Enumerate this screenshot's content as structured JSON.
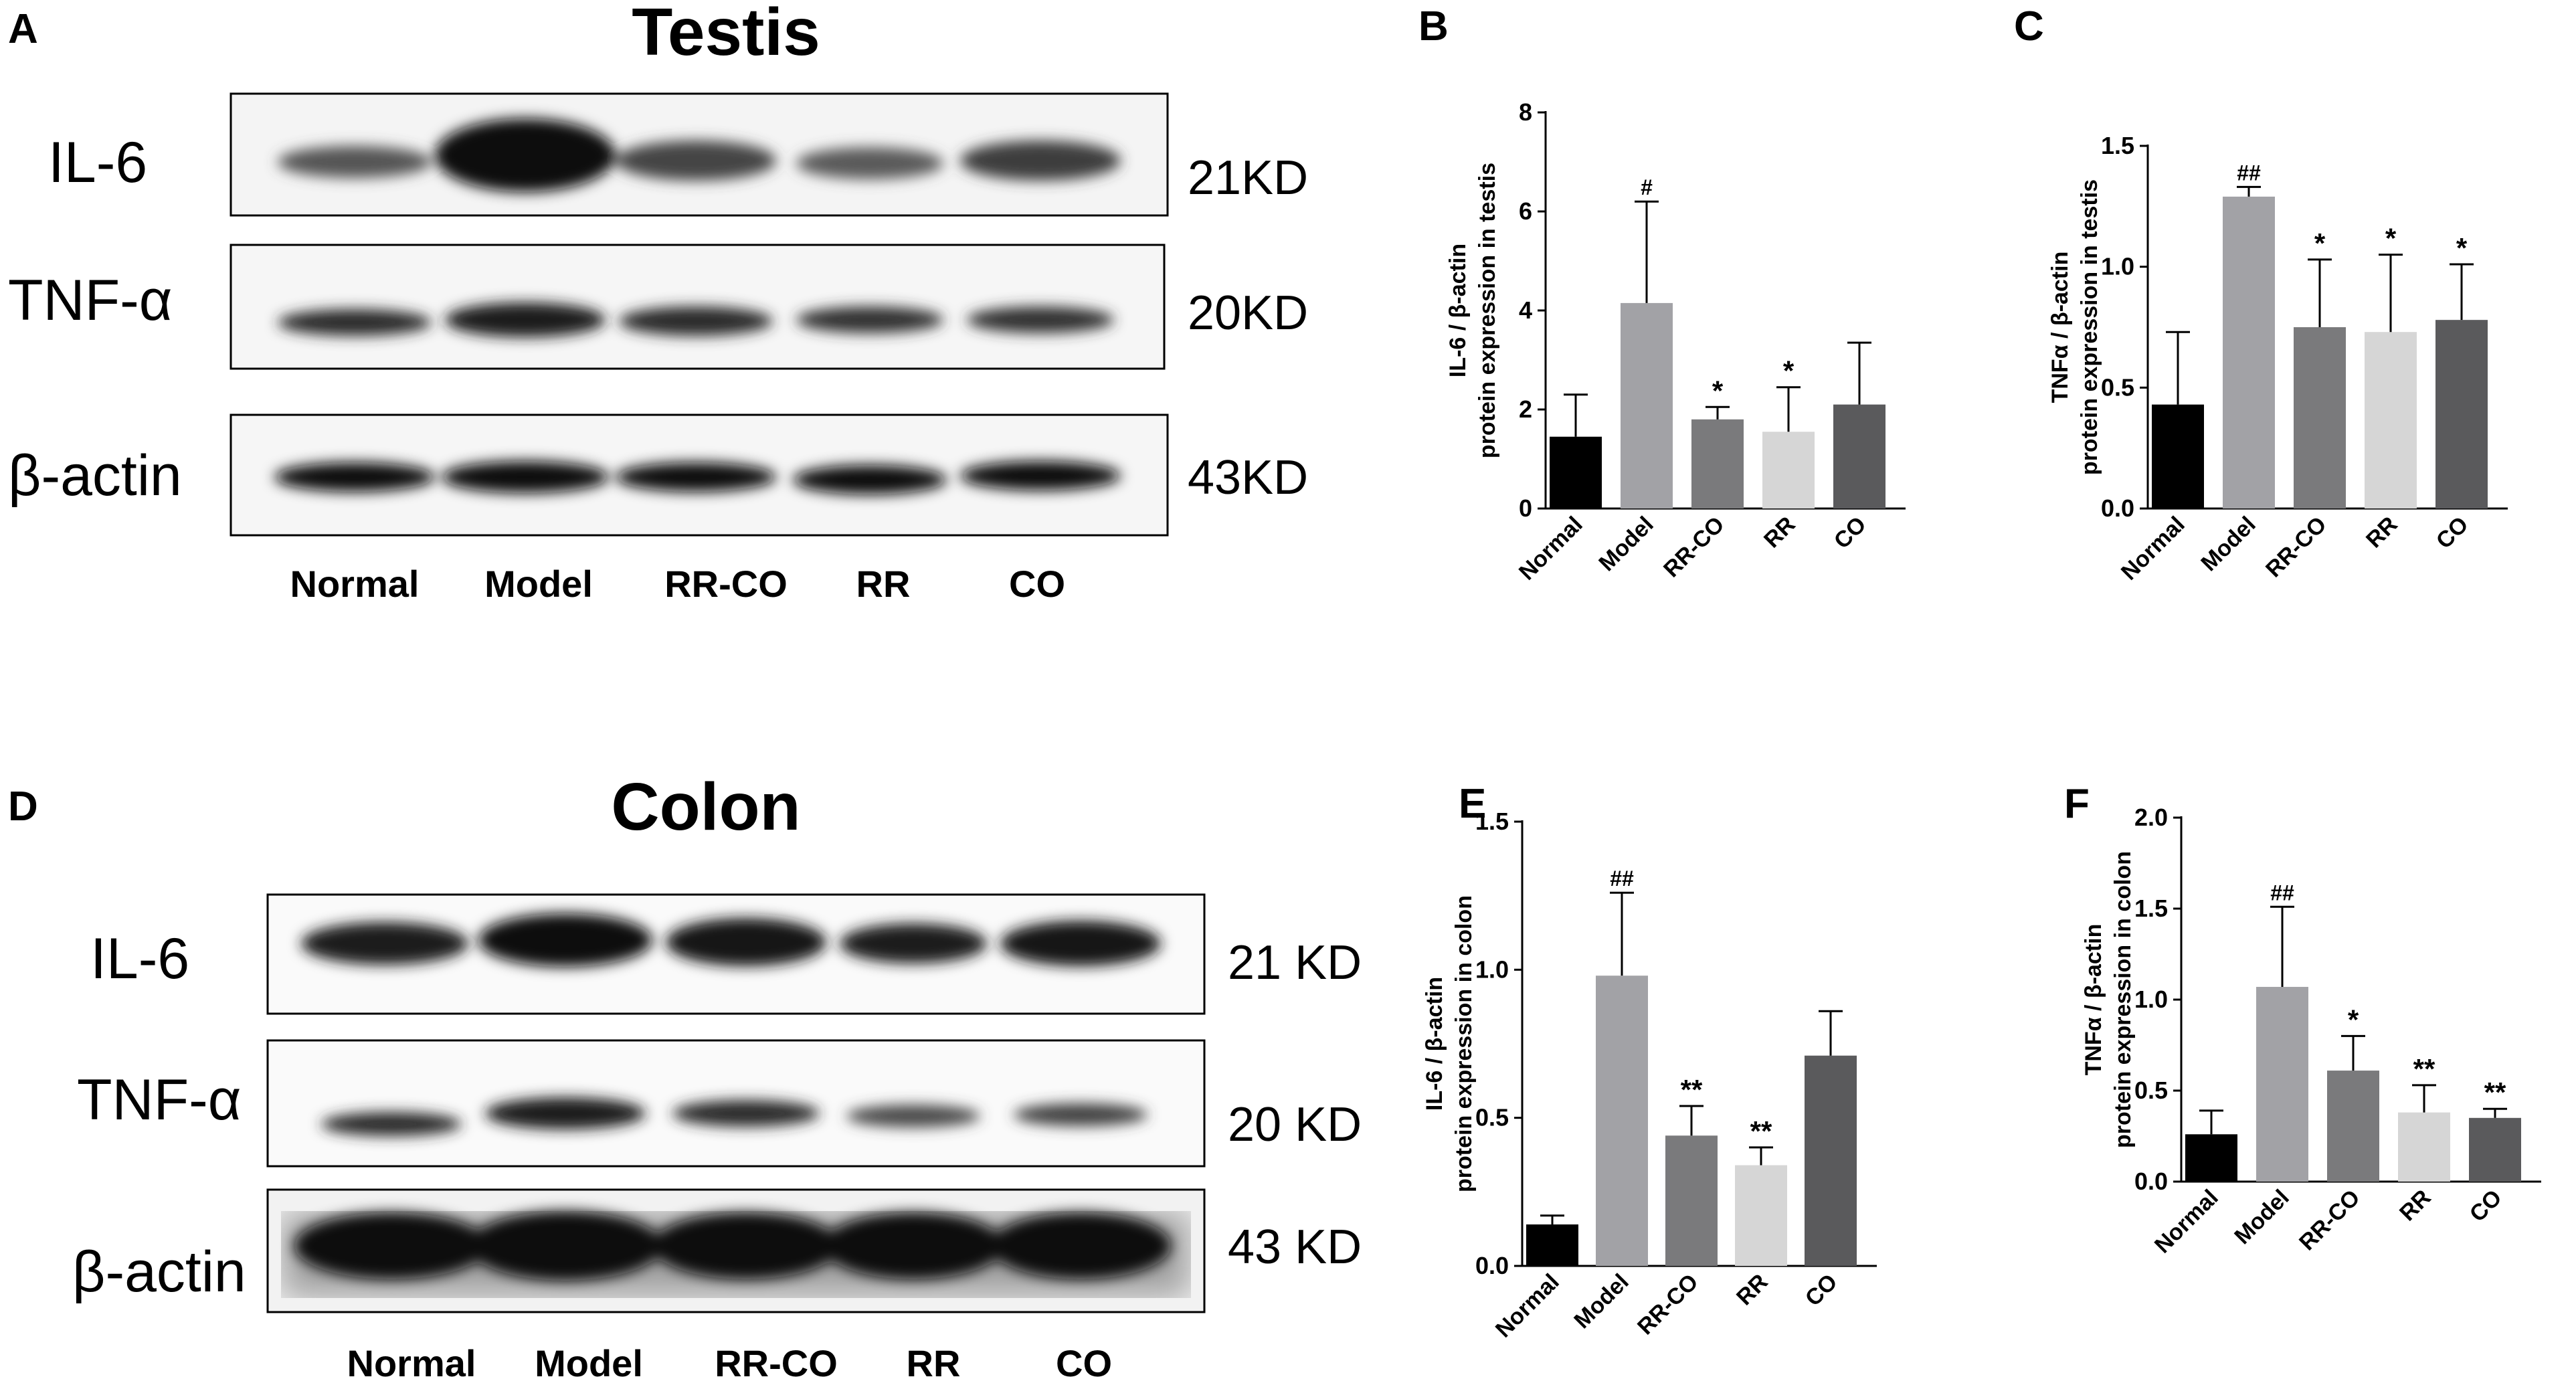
{
  "panel_letters": [
    "A",
    "B",
    "C",
    "D",
    "E",
    "F"
  ],
  "blots": [
    {
      "title": "Testis",
      "rows": [
        {
          "label": "IL-6",
          "size": "21KD"
        },
        {
          "label": "TNF-α",
          "size": "20KD"
        },
        {
          "label": "β-actin",
          "size": "43KD"
        }
      ],
      "lanes": [
        "Normal",
        "Model",
        "RR-CO",
        "RR",
        "CO"
      ]
    },
    {
      "title": "Colon",
      "rows": [
        {
          "label": "IL-6",
          "size": "21 KD"
        },
        {
          "label": "TNF-α",
          "size": "20 KD"
        },
        {
          "label": "β-actin",
          "size": "43 KD"
        }
      ],
      "lanes": [
        "Normal",
        "Model",
        "RR-CO",
        "RR",
        "CO"
      ]
    }
  ],
  "bar_colors": [
    "#000000",
    "#a2a2a6",
    "#7a7a7c",
    "#d6d6d6",
    "#5a5a5c"
  ],
  "chart_data": [
    {
      "panel": "B",
      "type": "bar",
      "ylabel": [
        "IL-6 / β-actin",
        "protein expression in testis"
      ],
      "categories": [
        "Normal",
        "Model",
        "RR-CO",
        "RR",
        "CO"
      ],
      "values": [
        1.45,
        4.15,
        1.8,
        1.55,
        2.1
      ],
      "errors": [
        0.85,
        2.05,
        0.25,
        0.9,
        1.25
      ],
      "annotations": [
        "",
        "#",
        "*",
        "*",
        ""
      ],
      "ylim": [
        0,
        8
      ],
      "yticks": [
        "0",
        "2",
        "4",
        "6",
        "8"
      ]
    },
    {
      "panel": "C",
      "type": "bar",
      "ylabel": [
        "TNFα / β-actin",
        "protein expression in testis"
      ],
      "categories": [
        "Normal",
        "Model",
        "RR-CO",
        "RR",
        "CO"
      ],
      "values": [
        0.43,
        1.29,
        0.75,
        0.73,
        0.78
      ],
      "errors": [
        0.3,
        0.04,
        0.28,
        0.32,
        0.23
      ],
      "annotations": [
        "",
        "##",
        "*",
        "*",
        "*"
      ],
      "ylim": [
        0,
        1.5
      ],
      "yticks": [
        "0.0",
        "0.5",
        "1.0",
        "1.5"
      ]
    },
    {
      "panel": "E",
      "type": "bar",
      "ylabel": [
        "IL-6 / β-actin",
        "protein expression in colon"
      ],
      "categories": [
        "Normal",
        "Model",
        "RR-CO",
        "RR",
        "CO"
      ],
      "values": [
        0.14,
        0.98,
        0.44,
        0.34,
        0.71
      ],
      "errors": [
        0.03,
        0.28,
        0.1,
        0.06,
        0.15
      ],
      "annotations": [
        "",
        "##",
        "**",
        "**",
        ""
      ],
      "ylim": [
        0,
        1.5
      ],
      "yticks": [
        "0.0",
        "0.5",
        "1.0",
        "1.5"
      ]
    },
    {
      "panel": "F",
      "type": "bar",
      "ylabel": [
        "TNFα / β-actin",
        "protein expression in colon"
      ],
      "categories": [
        "Normal",
        "Model",
        "RR-CO",
        "RR",
        "CO"
      ],
      "values": [
        0.26,
        1.07,
        0.61,
        0.38,
        0.35
      ],
      "errors": [
        0.13,
        0.44,
        0.19,
        0.15,
        0.05
      ],
      "annotations": [
        "",
        "##",
        "*",
        "**",
        "**"
      ],
      "ylim": [
        0,
        2.0
      ],
      "yticks": [
        "0.0",
        "0.5",
        "1.0",
        "1.5",
        "2.0"
      ]
    }
  ]
}
